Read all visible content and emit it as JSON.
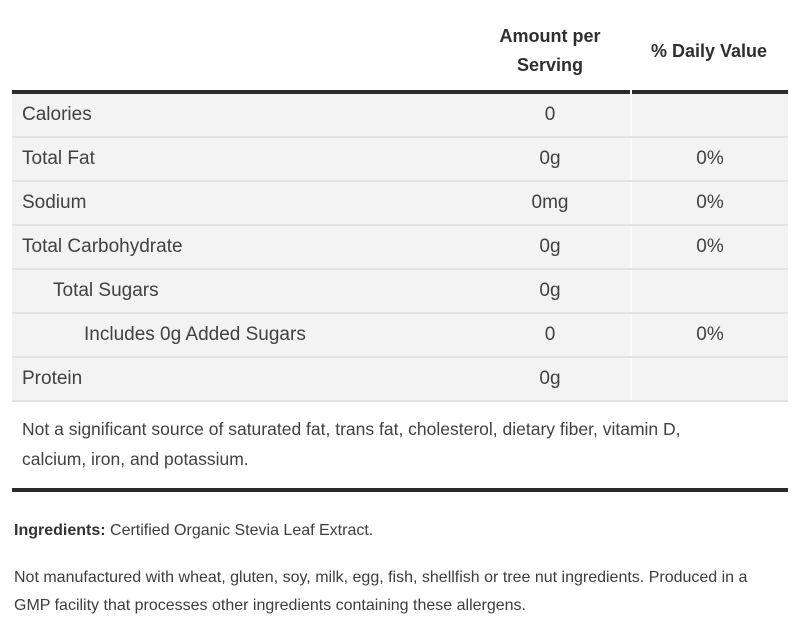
{
  "table": {
    "header": {
      "amount_col": "Amount per Serving",
      "daily_value_col": "% Daily Value"
    },
    "rows": [
      {
        "label": "Calories",
        "amount": "0",
        "daily_value": "",
        "indent": 0
      },
      {
        "label": "Total Fat",
        "amount": "0g",
        "daily_value": "0%",
        "indent": 0
      },
      {
        "label": "Sodium",
        "amount": "0mg",
        "daily_value": "0%",
        "indent": 0
      },
      {
        "label": "Total Carbohydrate",
        "amount": "0g",
        "daily_value": "0%",
        "indent": 0
      },
      {
        "label": "Total Sugars",
        "amount": "0g",
        "daily_value": "",
        "indent": 1
      },
      {
        "label": "Includes 0g Added Sugars",
        "amount": "0",
        "daily_value": "0%",
        "indent": 2
      },
      {
        "label": "Protein",
        "amount": "0g",
        "daily_value": "",
        "indent": 0
      }
    ],
    "footnote": "Not a significant source of saturated fat, trans fat, cholesterol, dietary fiber, vitamin D, calcium, iron, and potassium."
  },
  "ingredients": {
    "label": "Ingredients:",
    "text": "Certified Organic Stevia Leaf Extract."
  },
  "allergen_note": "Not manufactured with wheat, gluten, soy, milk, egg, fish, shellfish or tree nut ingredients. Produced in a GMP facility that processes other ingredients containing these allergens.",
  "colors": {
    "thick_rule": "#2b2b2b",
    "row_background": "#f3f3f3",
    "row_divider": "#e2e2e2",
    "column_divider": "#fbfbfb",
    "text": "#414141",
    "header_text": "#2f2f2f",
    "page_background": "#ffffff"
  }
}
